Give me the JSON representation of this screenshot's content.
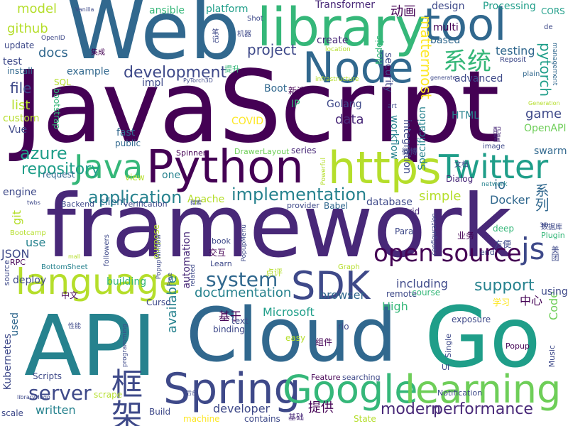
{
  "colors": {
    "background": "#ffffff",
    "palette": [
      "#440154",
      "#482878",
      "#3e4989",
      "#31688e",
      "#26828e",
      "#1f9e89",
      "#35b779",
      "#6ece58",
      "#b5de2b",
      "#fde725"
    ]
  },
  "cloud": {
    "words": [
      {
        "text": "JavaScript",
        "color": "#440154"
      },
      {
        "text": "framework",
        "color": "#482878"
      },
      {
        "text": "Web",
        "color": "#31688e"
      },
      {
        "text": "API",
        "color": "#26828e"
      },
      {
        "text": "Cloud",
        "color": "#31688e"
      },
      {
        "text": "Go",
        "color": "#1f9e89"
      },
      {
        "text": "library",
        "color": "#35b779"
      },
      {
        "text": "tool",
        "color": "#31688e"
      },
      {
        "text": "Python",
        "color": "#440154"
      },
      {
        "text": "https",
        "color": "#b5de2b"
      },
      {
        "text": "Node",
        "color": "#31688e"
      },
      {
        "text": "Spring",
        "color": "#3e4989"
      },
      {
        "text": "Google",
        "color": "#35b779"
      },
      {
        "text": "learning",
        "color": "#6ece58"
      },
      {
        "text": "language",
        "color": "#b5de2b"
      },
      {
        "text": "SDK",
        "color": "#3e4989"
      },
      {
        "text": "Java",
        "color": "#35b779"
      },
      {
        "text": "Twitter",
        "color": "#1f9e89"
      },
      {
        "text": "open source",
        "color": "#440154"
      },
      {
        "text": "js",
        "color": "#3e4989"
      },
      {
        "text": "框架",
        "color": "#3e4989"
      },
      {
        "text": "系统",
        "color": "#35b779"
      },
      {
        "text": "system",
        "color": "#31688e"
      },
      {
        "text": "server",
        "color": "#3e4989"
      },
      {
        "text": "implementation",
        "color": "#26828e"
      },
      {
        "text": "application",
        "color": "#26828e"
      },
      {
        "text": "development",
        "color": "#3e4989"
      },
      {
        "text": "repository",
        "color": "#1f9e89"
      },
      {
        "text": "modern",
        "color": "#482878"
      },
      {
        "text": "performance",
        "color": "#482878"
      },
      {
        "text": "support",
        "color": "#26828e"
      },
      {
        "text": "documentation",
        "color": "#26828e"
      },
      {
        "text": "azure",
        "color": "#1f9e89"
      },
      {
        "text": "project",
        "color": "#3e4989"
      },
      {
        "text": "pytorch",
        "color": "#1f9e89"
      },
      {
        "text": "mattermost",
        "color": "#fde725"
      },
      {
        "text": "动画",
        "color": "#440154"
      },
      {
        "text": "Transformer",
        "color": "#482878"
      },
      {
        "text": "github",
        "color": "#b5de2b"
      },
      {
        "text": "model",
        "color": "#b5de2b"
      },
      {
        "text": "ansible",
        "color": "#35b779"
      },
      {
        "text": "platform",
        "color": "#1f9e89"
      },
      {
        "text": "docs",
        "color": "#31688e"
      },
      {
        "text": "example",
        "color": "#31688e"
      },
      {
        "text": "file",
        "color": "#3e4989"
      },
      {
        "text": "list",
        "color": "#b5de2b"
      },
      {
        "text": "testing",
        "color": "#31688e"
      },
      {
        "text": "game",
        "color": "#3e4989"
      },
      {
        "text": "Docker",
        "color": "#31688e"
      },
      {
        "text": "io",
        "color": "#31688e"
      },
      {
        "text": "系列",
        "color": "#31688e"
      },
      {
        "text": "simple",
        "color": "#b5de2b"
      },
      {
        "text": "database",
        "color": "#3e4989"
      },
      {
        "text": "data",
        "color": "#482878"
      },
      {
        "text": "HTML",
        "color": "#26828e"
      },
      {
        "text": "OpenAPI",
        "color": "#6ece58"
      },
      {
        "text": "swarm",
        "color": "#31688e"
      },
      {
        "text": "Microsoft",
        "color": "#1f9e89"
      },
      {
        "text": "browser",
        "color": "#31688e"
      },
      {
        "text": "including",
        "color": "#3e4989"
      },
      {
        "text": "available",
        "color": "#26828e"
      },
      {
        "text": "automation",
        "color": "#482878"
      },
      {
        "text": "Code",
        "color": "#6ece58"
      },
      {
        "text": "High",
        "color": "#35b779"
      },
      {
        "text": "中心",
        "color": "#440154"
      },
      {
        "text": "基于",
        "color": "#440154"
      },
      {
        "text": "提供",
        "color": "#440154"
      },
      {
        "text": "using",
        "color": "#3e4989"
      },
      {
        "text": "written",
        "color": "#26828e"
      },
      {
        "text": "developer",
        "color": "#3e4989"
      },
      {
        "text": "use",
        "color": "#26828e"
      },
      {
        "text": "git",
        "color": "#b5de2b"
      },
      {
        "text": "engine",
        "color": "#3e4989"
      },
      {
        "text": "JSON",
        "color": "#3e4989"
      },
      {
        "text": "Apache",
        "color": "#b5de2b"
      },
      {
        "text": "Kubernetes",
        "color": "#3e4989"
      },
      {
        "text": "deploy",
        "color": "#3e4989"
      },
      {
        "text": "used",
        "color": "#31688e"
      },
      {
        "text": "COVID",
        "color": "#fde725"
      },
      {
        "text": "security",
        "color": "#3e4989"
      },
      {
        "text": "Nodejs",
        "color": "#35b779"
      },
      {
        "text": "integration",
        "color": "#3e4989"
      },
      {
        "text": "workflow",
        "color": "#26828e"
      },
      {
        "text": "Specification",
        "color": "#26828e"
      },
      {
        "text": "Golang",
        "color": "#3e4989"
      },
      {
        "text": "advanced",
        "color": "#3e4989"
      },
      {
        "text": "based",
        "color": "#31688e"
      },
      {
        "text": "multi",
        "color": "#440154"
      },
      {
        "text": "design",
        "color": "#3e4989"
      },
      {
        "text": "Processing",
        "color": "#1f9e89"
      },
      {
        "text": "CORS",
        "color": "#1f9e89"
      },
      {
        "text": "create",
        "color": "#482878"
      },
      {
        "text": "update",
        "color": "#3e4989"
      },
      {
        "text": "test",
        "color": "#3e4989"
      },
      {
        "text": "install",
        "color": "#31688e"
      },
      {
        "text": "impl",
        "color": "#3e4989"
      },
      {
        "text": "Boot",
        "color": "#31688e"
      },
      {
        "text": "IP",
        "color": "#35b779"
      },
      {
        "text": "Vue",
        "color": "#3e4989"
      },
      {
        "text": "custom",
        "color": "#b5de2b"
      },
      {
        "text": "fast",
        "color": "#31688e"
      },
      {
        "text": "public",
        "color": "#31688e"
      },
      {
        "text": "bootstrap",
        "color": "#35b779"
      },
      {
        "text": "SQL",
        "color": "#b5de2b"
      },
      {
        "text": "series",
        "color": "#482878"
      },
      {
        "text": "Dialog",
        "color": "#482878"
      },
      {
        "text": "Grid",
        "color": "#482878"
      },
      {
        "text": "view",
        "color": "#b5de2b"
      },
      {
        "text": "client",
        "color": "#31688e"
      },
      {
        "text": "one",
        "color": "#26828e"
      },
      {
        "text": "request",
        "color": "#31688e"
      },
      {
        "text": "Backend",
        "color": "#3e4989"
      },
      {
        "text": "verification",
        "color": "#3e4989"
      },
      {
        "text": "provider",
        "color": "#3e4989"
      },
      {
        "text": "Babel",
        "color": "#31688e"
      },
      {
        "text": "purpose",
        "color": "#b5de2b"
      },
      {
        "text": "book",
        "color": "#3e4989"
      },
      {
        "text": "Para",
        "color": "#3e4989"
      },
      {
        "text": "业务",
        "color": "#440154"
      },
      {
        "text": "方便",
        "color": "#3e4989"
      },
      {
        "text": "deep",
        "color": "#35b779"
      },
      {
        "text": "end",
        "color": "#3e4989"
      },
      {
        "text": "RPC",
        "color": "#440154"
      },
      {
        "text": "Learn",
        "color": "#3e4989"
      },
      {
        "text": "交互",
        "color": "#440154"
      },
      {
        "text": "点评",
        "color": "#b5de2b"
      },
      {
        "text": "source",
        "color": "#3e4989"
      },
      {
        "text": "building",
        "color": "#35b779"
      },
      {
        "text": "Curso",
        "color": "#3e4989"
      },
      {
        "text": "remote",
        "color": "#3e4989"
      },
      {
        "text": "course",
        "color": "#35b779"
      },
      {
        "text": "rio",
        "color": "#3e4989"
      },
      {
        "text": "text",
        "color": "#3e4989"
      },
      {
        "text": "binding",
        "color": "#3e4989"
      },
      {
        "text": "easy",
        "color": "#b5de2b"
      },
      {
        "text": "组件",
        "color": "#440154"
      },
      {
        "text": "exposure",
        "color": "#3e4989"
      },
      {
        "text": "学习",
        "color": "#fde725"
      },
      {
        "text": "中文",
        "color": "#440154"
      },
      {
        "text": "Scripts",
        "color": "#3e4989"
      },
      {
        "text": "scrape",
        "color": "#b5de2b"
      },
      {
        "text": "scale",
        "color": "#3e4989"
      },
      {
        "text": "Build",
        "color": "#3e4989"
      },
      {
        "text": "machine",
        "color": "#fde725"
      },
      {
        "text": "contains",
        "color": "#3e4989"
      },
      {
        "text": "基础",
        "color": "#482878"
      },
      {
        "text": "State",
        "color": "#b5de2b"
      },
      {
        "text": "searching",
        "color": "#3e4989"
      },
      {
        "text": "Feature",
        "color": "#440154"
      },
      {
        "text": "Notification",
        "color": "#3e4989"
      },
      {
        "text": "Popup",
        "color": "#440154"
      },
      {
        "text": "Single",
        "color": "#3e4989"
      },
      {
        "text": "UI",
        "color": "#3e4989"
      },
      {
        "text": "Music",
        "color": "#3e4989"
      },
      {
        "text": "Plugin",
        "color": "#35b779"
      },
      {
        "text": "数据库",
        "color": "#3e4989"
      },
      {
        "text": "美团",
        "color": "#3e4989"
      },
      {
        "text": "network",
        "color": "#26828e"
      },
      {
        "text": "image",
        "color": "#3e4989"
      },
      {
        "text": "配置",
        "color": "#482878"
      },
      {
        "text": "微博",
        "color": "#3e4989"
      },
      {
        "text": "文档",
        "color": "#3e4989"
      },
      {
        "text": "art",
        "color": "#3e4989"
      },
      {
        "text": "新浪",
        "color": "#440154"
      },
      {
        "text": "Reposit",
        "color": "#3e4989"
      },
      {
        "text": "plain",
        "color": "#31688e"
      },
      {
        "text": "management",
        "color": "#31688e"
      },
      {
        "text": "de",
        "color": "#3e4989"
      },
      {
        "text": "generate",
        "color": "#3e4989"
      },
      {
        "text": "Generation",
        "color": "#b5de2b"
      },
      {
        "text": "location",
        "color": "#b5de2b"
      },
      {
        "text": "infrastructure",
        "color": "#b5de2b"
      },
      {
        "text": "集成",
        "color": "#440154"
      },
      {
        "text": "机器",
        "color": "#3e4989"
      },
      {
        "text": "笔记",
        "color": "#3e4989"
      },
      {
        "text": "提升",
        "color": "#35b779"
      },
      {
        "text": "PyTorch3D",
        "color": "#3e4989"
      },
      {
        "text": "OpenID",
        "color": "#3e4989"
      },
      {
        "text": "Vanilla",
        "color": "#3e4989"
      },
      {
        "text": "Shot",
        "color": "#3e4989"
      },
      {
        "text": "Spinner",
        "color": "#440154"
      },
      {
        "text": "DrawerLayout",
        "color": "#6ece58"
      },
      {
        "text": "Powerful",
        "color": "#b5de2b"
      },
      {
        "text": "PopupWindow",
        "color": "#3e4989"
      },
      {
        "text": "PopupMenu",
        "color": "#3e4989"
      },
      {
        "text": "BottomSheet",
        "color": "#26828e"
      },
      {
        "text": "Bootcamp",
        "color": "#b5de2b"
      },
      {
        "text": "twbs",
        "color": "#3e4989"
      },
      {
        "text": "搜索",
        "color": "#3e4989"
      },
      {
        "text": "related",
        "color": "#3e4989"
      },
      {
        "text": "followers",
        "color": "#3e4989"
      },
      {
        "text": "Free",
        "color": "#3e4989"
      },
      {
        "text": "mall",
        "color": "#b5de2b"
      },
      {
        "text": "性能",
        "color": "#3e4989"
      },
      {
        "text": "programming",
        "color": "#3e4989"
      },
      {
        "text": "后台",
        "color": "#3e4989"
      },
      {
        "text": "libraryHugo",
        "color": "#3e4989"
      },
      {
        "text": "Graph",
        "color": "#b5de2b"
      },
      {
        "text": "3D",
        "color": "#3e4989"
      },
      {
        "text": "configuration",
        "color": "#3e4989"
      }
    ]
  }
}
